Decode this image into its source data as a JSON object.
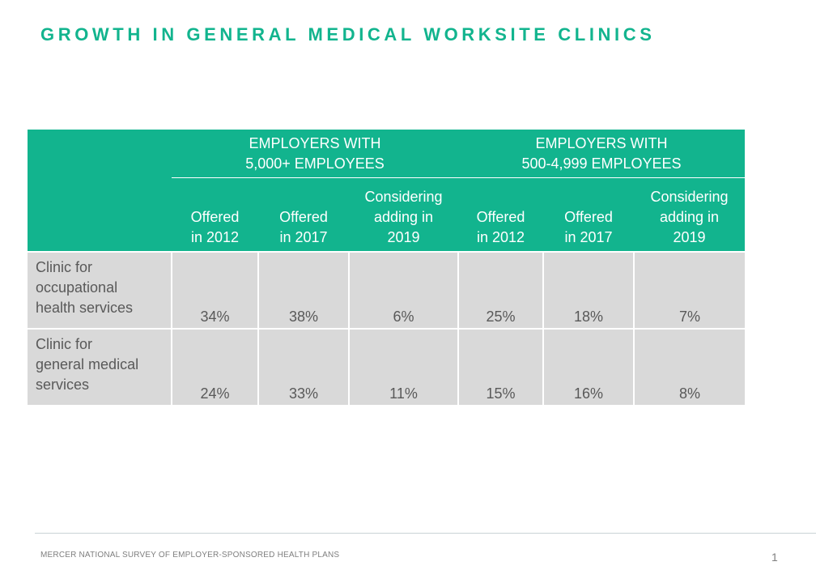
{
  "title": "GROWTH IN GENERAL MEDICAL WORKSITE CLINICS",
  "table": {
    "groups": [
      {
        "line1": "EMPLOYERS WITH",
        "line2": "5,000+ EMPLOYEES"
      },
      {
        "line1": "EMPLOYERS WITH",
        "line2": "500-4,999 EMPLOYEES"
      }
    ],
    "subheaders": [
      [
        "Offered",
        "in 2012"
      ],
      [
        "Offered",
        "in 2017"
      ],
      [
        "Considering",
        "adding in",
        "2019"
      ],
      [
        "Offered",
        "in 2012"
      ],
      [
        "Offered",
        "in 2017"
      ],
      [
        "Considering",
        "adding in",
        "2019"
      ]
    ],
    "rows": [
      {
        "label": [
          "Clinic for",
          "occupational",
          "health services"
        ],
        "values": [
          "34%",
          "38%",
          "6%",
          "25%",
          "18%",
          "7%"
        ]
      },
      {
        "label": [
          "Clinic for",
          "general medical",
          "services"
        ],
        "values": [
          "24%",
          "33%",
          "11%",
          "15%",
          "16%",
          "8%"
        ]
      }
    ]
  },
  "footer": {
    "source": "MERCER  NATIONAL  SURVEY OF EMPLOYER-SPONSORED  HEALTH PLANS",
    "page_number": "1"
  }
}
